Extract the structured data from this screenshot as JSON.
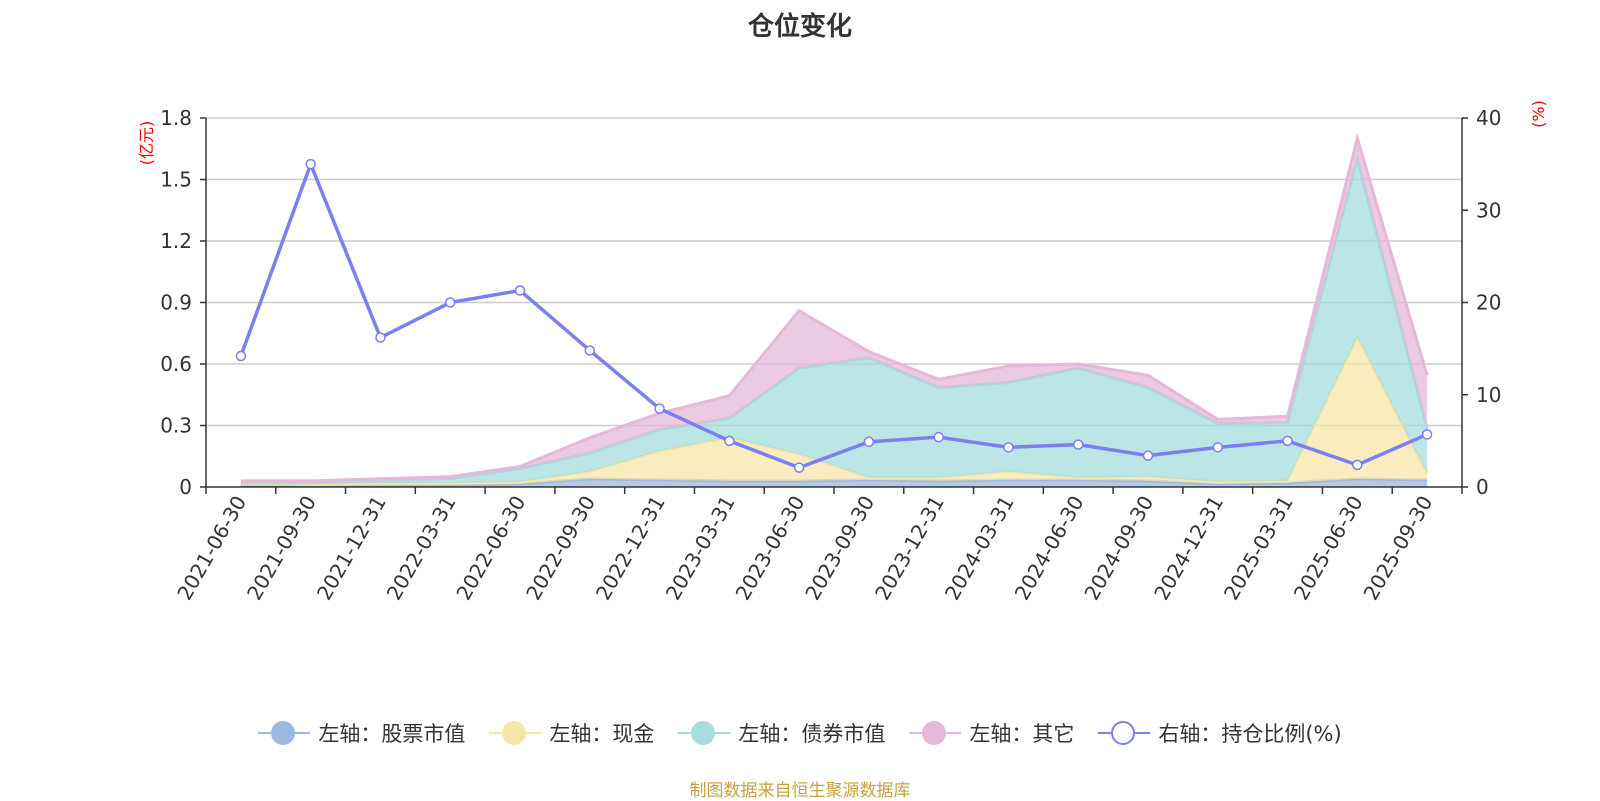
{
  "chart_data": {
    "type": "area",
    "title": "仓位变化",
    "left_axis_unit": "(亿元)",
    "right_axis_unit": "(%)",
    "categories": [
      "2021-06-30",
      "2021-09-30",
      "2021-12-31",
      "2022-03-31",
      "2022-06-30",
      "2022-09-30",
      "2022-12-31",
      "2023-03-31",
      "2023-06-30",
      "2023-09-30",
      "2023-12-31",
      "2024-03-31",
      "2024-06-30",
      "2024-09-30",
      "2024-12-31",
      "2025-03-31",
      "2025-06-30",
      "2025-09-30"
    ],
    "left_ylim": [
      0,
      1.8
    ],
    "left_ticks": [
      "0",
      "0.3",
      "0.6",
      "0.9",
      "1.2",
      "1.5",
      "1.8"
    ],
    "right_ylim": [
      0,
      40
    ],
    "right_ticks": [
      "0",
      "10",
      "20",
      "30",
      "40"
    ],
    "grid": true,
    "legend_position": "bottom",
    "stacked": true,
    "series": [
      {
        "name": "左轴：股票市值",
        "axis": "left",
        "kind": "area",
        "color": "#9db8e0",
        "values": [
          0.01,
          0.005,
          0.008,
          0.01,
          0.015,
          0.04,
          0.035,
          0.03,
          0.03,
          0.035,
          0.03,
          0.035,
          0.035,
          0.03,
          0.015,
          0.02,
          0.04,
          0.035
        ]
      },
      {
        "name": "左轴：现金",
        "axis": "left",
        "kind": "area",
        "color": "#f7e6a8",
        "values": [
          0.005,
          0.01,
          0.01,
          0.01,
          0.01,
          0.035,
          0.14,
          0.21,
          0.13,
          0.01,
          0.015,
          0.04,
          0.01,
          0.02,
          0.01,
          0.01,
          0.69,
          0.03
        ]
      },
      {
        "name": "左轴：债券市值",
        "axis": "left",
        "kind": "area",
        "color": "#a6dcdc",
        "values": [
          0.005,
          0.005,
          0.012,
          0.02,
          0.065,
          0.09,
          0.105,
          0.095,
          0.42,
          0.585,
          0.44,
          0.435,
          0.535,
          0.435,
          0.285,
          0.285,
          0.87,
          0.22
        ]
      },
      {
        "name": "左轴：其它",
        "axis": "left",
        "kind": "area",
        "color": "#e6b8d8",
        "values": [
          0.01,
          0.01,
          0.01,
          0.01,
          0.01,
          0.075,
          0.08,
          0.11,
          0.28,
          0.03,
          0.04,
          0.08,
          0.02,
          0.06,
          0.02,
          0.03,
          0.1,
          0.26
        ]
      },
      {
        "name": "右轴：持仓比例(%)",
        "axis": "right",
        "kind": "line",
        "color": "#7b7ff0",
        "values": [
          14.2,
          35.0,
          16.2,
          20.0,
          21.3,
          14.8,
          8.5,
          5.0,
          2.1,
          4.9,
          5.4,
          4.3,
          4.6,
          3.4,
          4.3,
          5.0,
          2.4,
          5.7
        ]
      }
    ]
  },
  "source_text": "制图数据来自恒生聚源数据库"
}
